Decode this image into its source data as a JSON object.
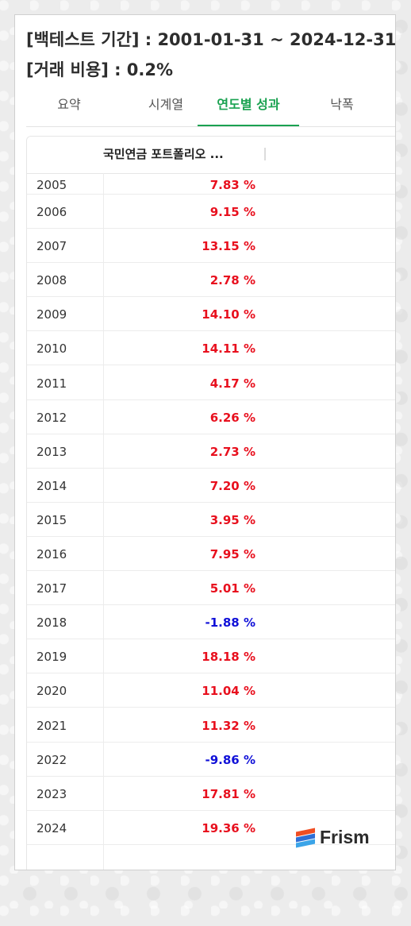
{
  "header": {
    "line1": "[백테스트 기간] : 2001-01-31 ~ 2024-12-31",
    "line2": "[거래 비용] : 0.2%"
  },
  "tabs": [
    {
      "label": "요약",
      "active": false
    },
    {
      "label": "시계열",
      "active": false
    },
    {
      "label": "연도별 성과",
      "active": true
    },
    {
      "label": "낙폭",
      "active": false
    }
  ],
  "table": {
    "column_header": "국민연금 포트폴리오 ...",
    "rows": [
      {
        "year": "2005",
        "value": "7.83 %",
        "sign": "pos"
      },
      {
        "year": "2006",
        "value": "9.15 %",
        "sign": "pos"
      },
      {
        "year": "2007",
        "value": "13.15 %",
        "sign": "pos"
      },
      {
        "year": "2008",
        "value": "2.78 %",
        "sign": "pos"
      },
      {
        "year": "2009",
        "value": "14.10 %",
        "sign": "pos"
      },
      {
        "year": "2010",
        "value": "14.11 %",
        "sign": "pos"
      },
      {
        "year": "2011",
        "value": "4.17 %",
        "sign": "pos"
      },
      {
        "year": "2012",
        "value": "6.26 %",
        "sign": "pos"
      },
      {
        "year": "2013",
        "value": "2.73 %",
        "sign": "pos"
      },
      {
        "year": "2014",
        "value": "7.20 %",
        "sign": "pos"
      },
      {
        "year": "2015",
        "value": "3.95 %",
        "sign": "pos"
      },
      {
        "year": "2016",
        "value": "7.95 %",
        "sign": "pos"
      },
      {
        "year": "2017",
        "value": "5.01 %",
        "sign": "pos"
      },
      {
        "year": "2018",
        "value": "-1.88 %",
        "sign": "neg"
      },
      {
        "year": "2019",
        "value": "18.18 %",
        "sign": "pos"
      },
      {
        "year": "2020",
        "value": "11.04 %",
        "sign": "pos"
      },
      {
        "year": "2021",
        "value": "11.32 %",
        "sign": "pos"
      },
      {
        "year": "2022",
        "value": "-9.86 %",
        "sign": "neg"
      },
      {
        "year": "2023",
        "value": "17.81 %",
        "sign": "pos"
      },
      {
        "year": "2024",
        "value": "19.36 %",
        "sign": "pos"
      }
    ]
  },
  "colors": {
    "accent": "#1aa251",
    "positive": "#e8101e",
    "negative": "#1010d8",
    "logo_stripes": [
      "#f04e23",
      "#2f6fd6",
      "#3ba4e8"
    ]
  },
  "logo": {
    "text": "Frism",
    "icon": "frism-logo-icon"
  }
}
